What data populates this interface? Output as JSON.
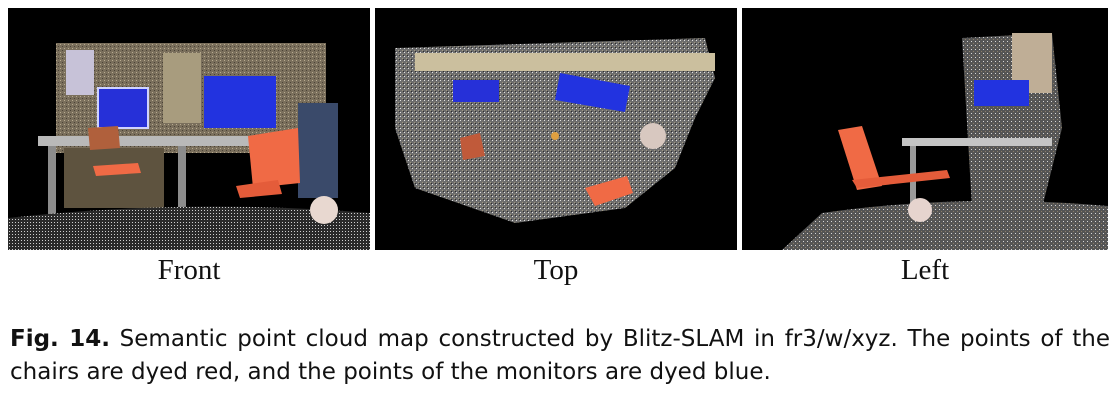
{
  "figure": {
    "panels": [
      {
        "id": "front",
        "label": "Front"
      },
      {
        "id": "top",
        "label": "Top"
      },
      {
        "id": "left",
        "label": "Left"
      }
    ],
    "caption": {
      "label": "Fig. 14.",
      "text": "Semantic point cloud map constructed by Blitz-SLAM in fr3/w/xyz. The points of the chairs are dyed red, and the points of the monitors are dyed blue."
    },
    "colors": {
      "chair": "#f06a45",
      "monitor": "#2233e0",
      "background": "#000000"
    }
  }
}
